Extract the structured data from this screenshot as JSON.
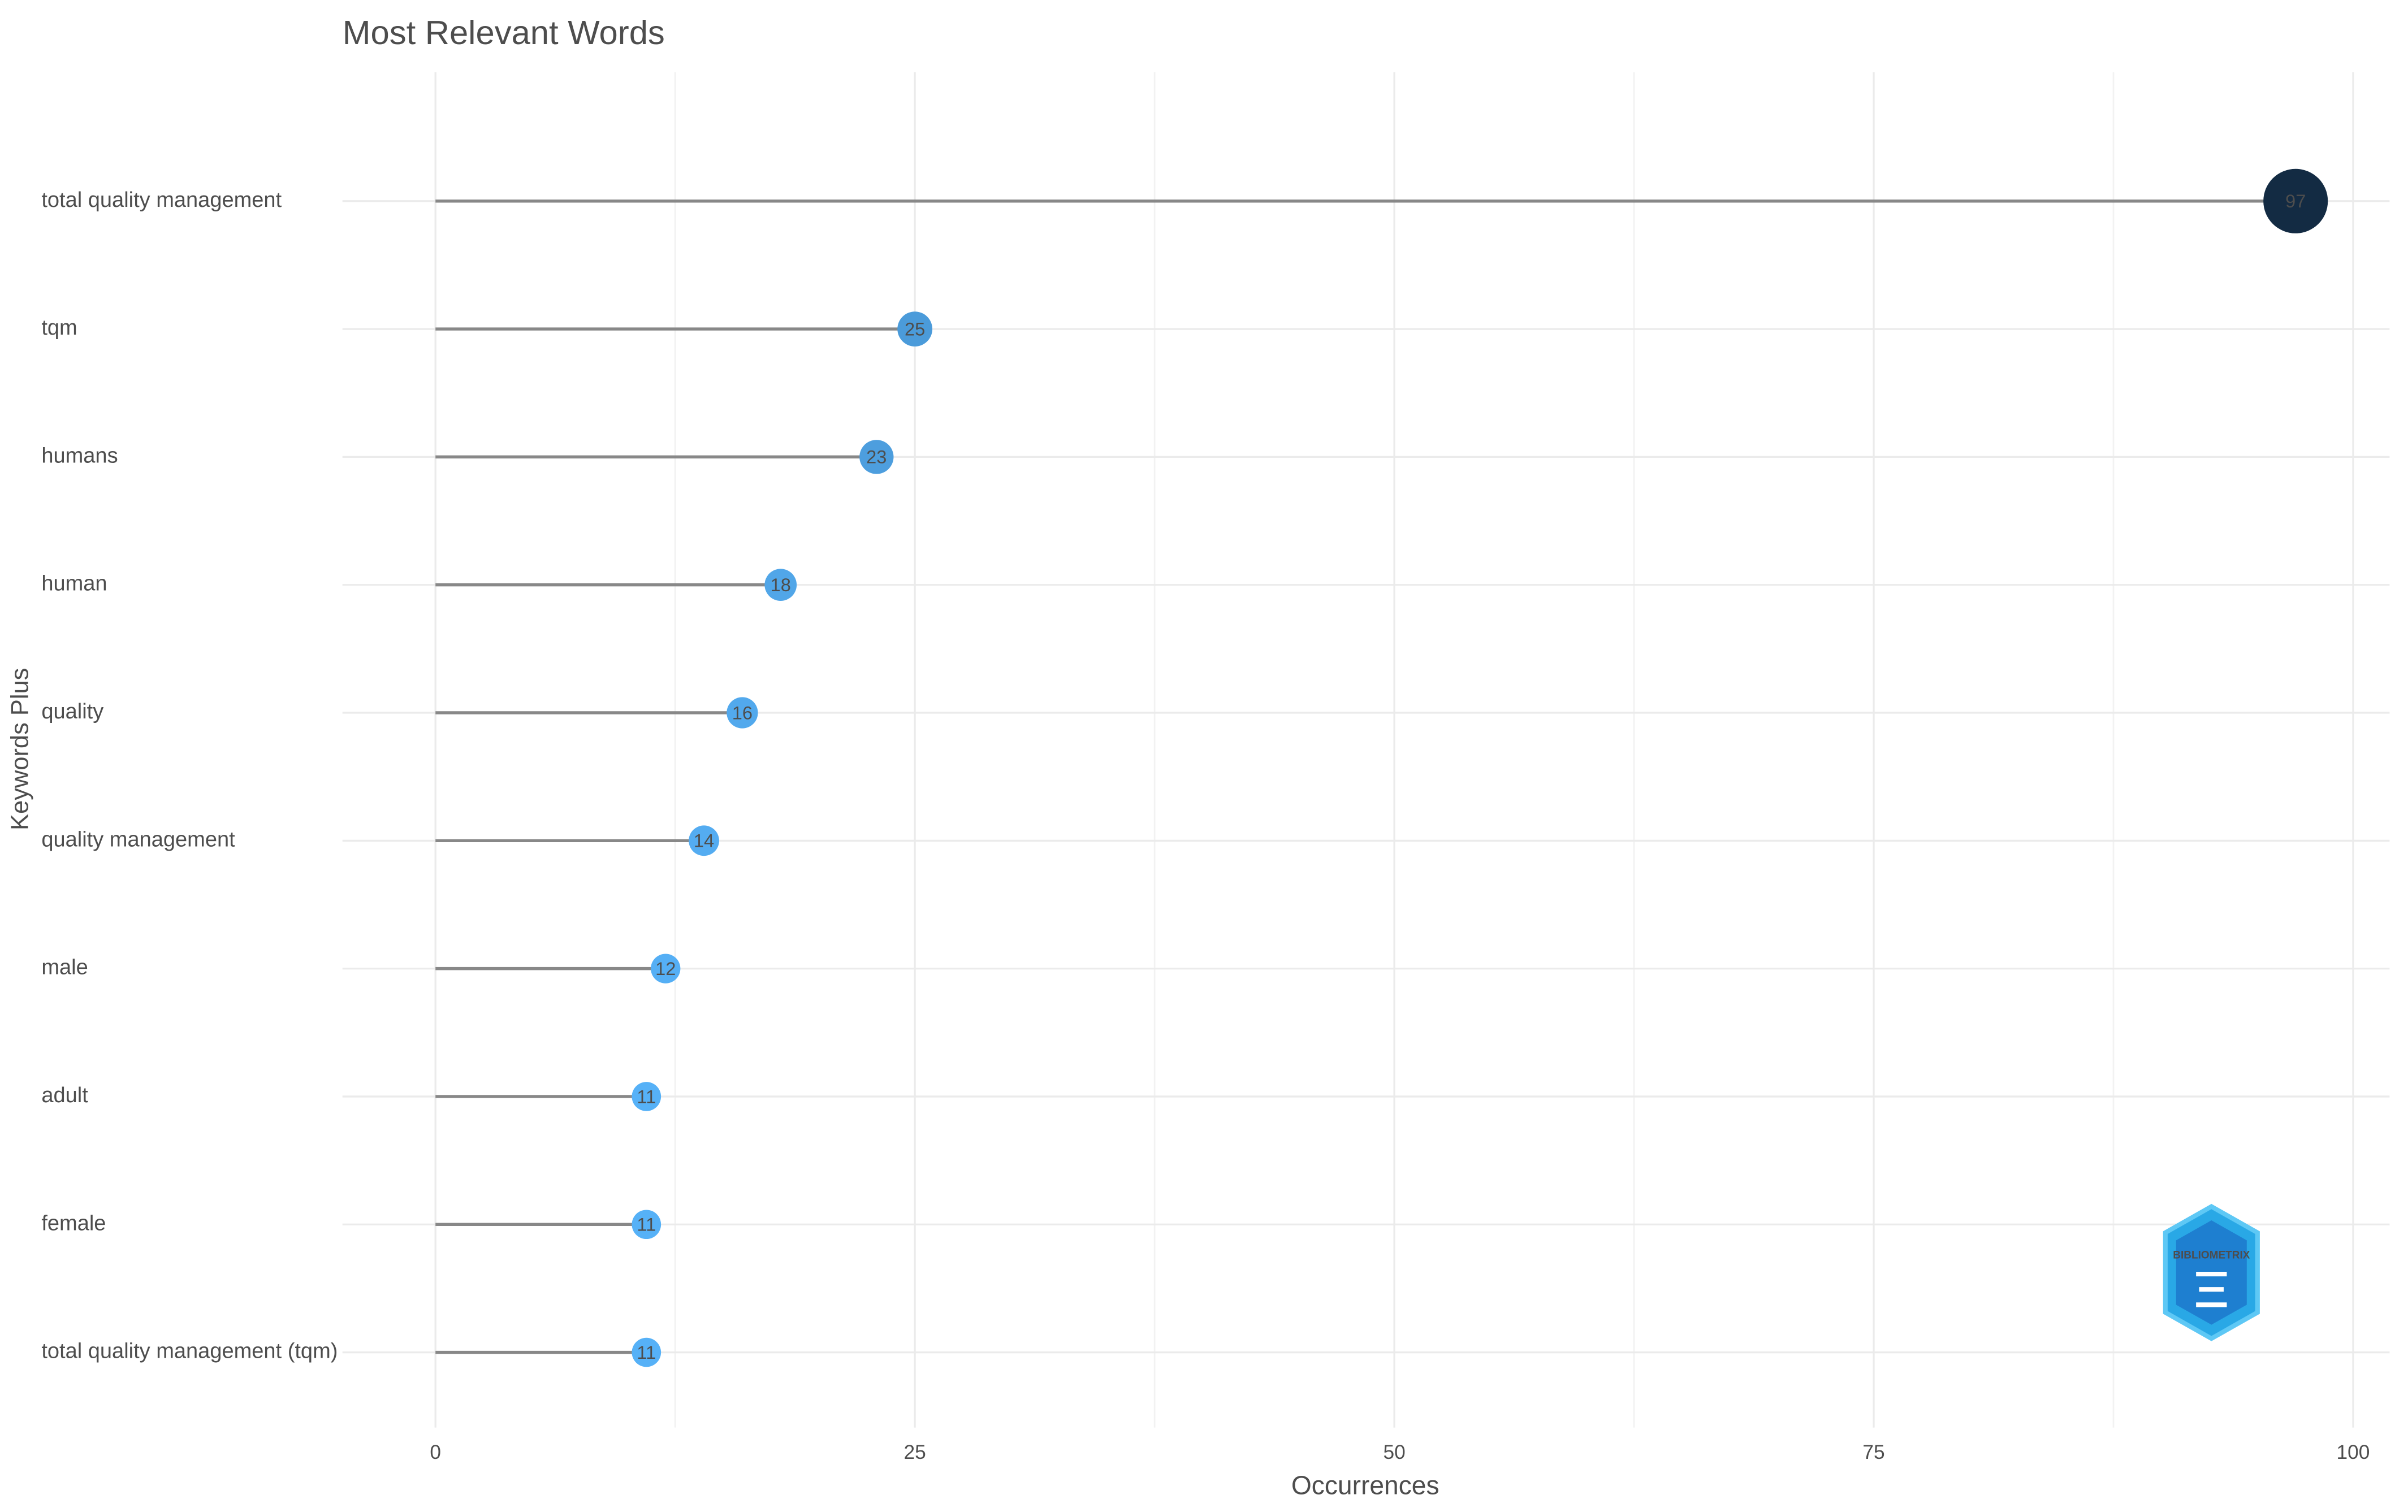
{
  "chart_data": {
    "type": "lollipop",
    "title": "Most Relevant Words",
    "x_label": "Occurrences",
    "y_label": "Keywords Plus",
    "categories": [
      "total quality management",
      "tqm",
      "humans",
      "human",
      "quality",
      "quality management",
      "male",
      "adult",
      "female",
      "total quality management (tqm)"
    ],
    "values": [
      97,
      25,
      23,
      18,
      16,
      14,
      12,
      11,
      11,
      11
    ],
    "color_low": "#56B1F7",
    "color_high": "#132B43",
    "stem_color": "#888888",
    "xlim": [
      -4.85,
      101.9
    ],
    "xticks": [
      0,
      25,
      50,
      75,
      100
    ],
    "grid": true,
    "watermark": "BIBLIOMETRIX"
  }
}
